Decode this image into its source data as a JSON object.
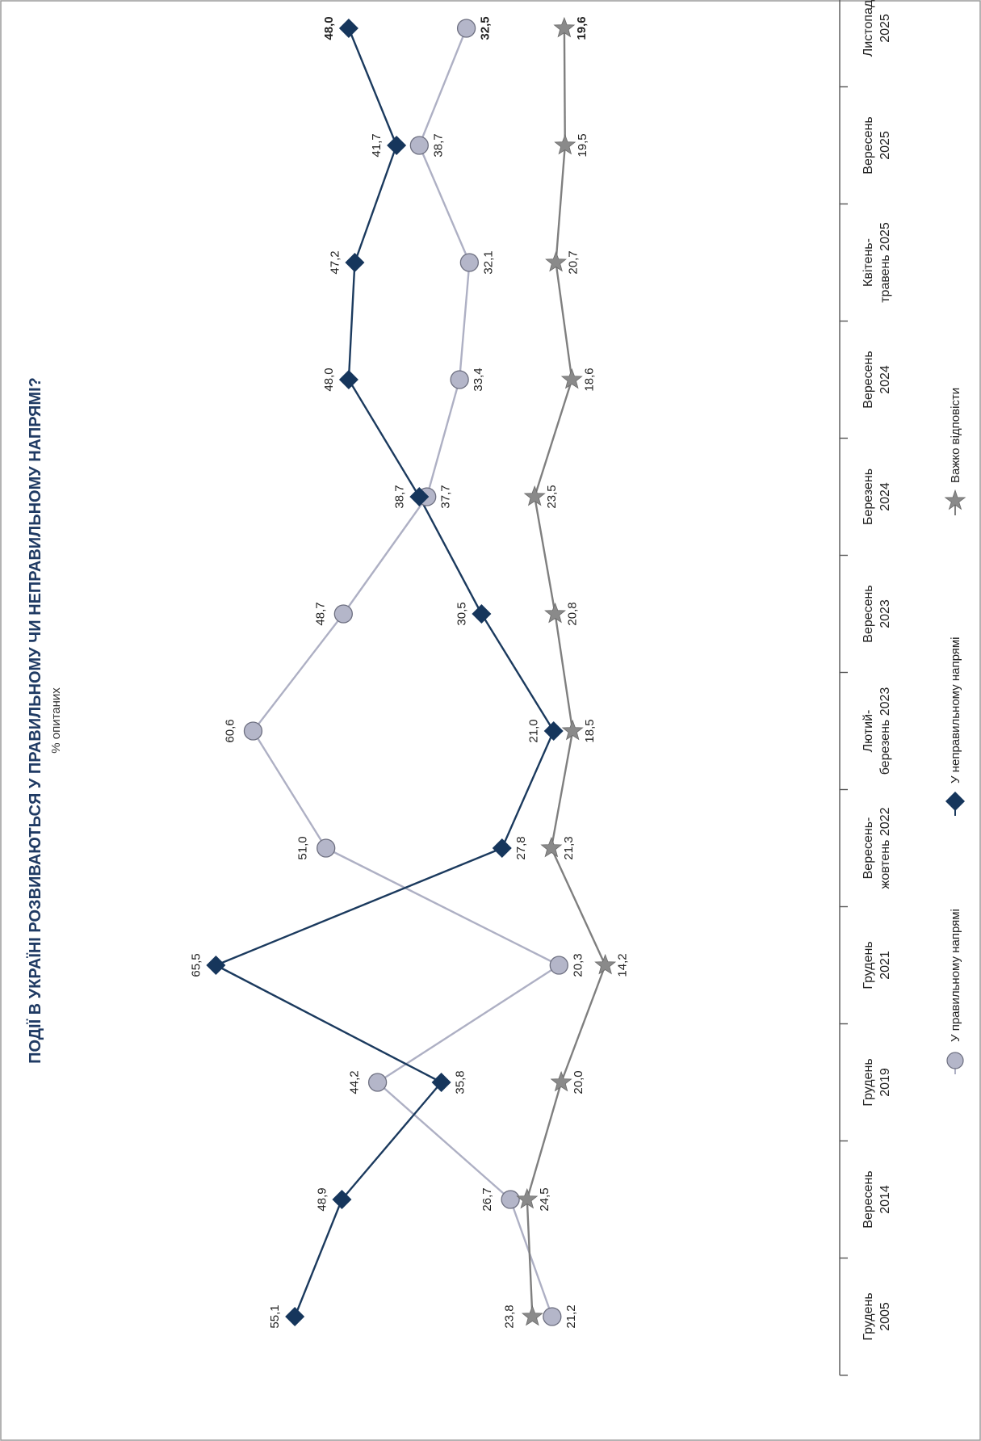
{
  "chart_data": {
    "type": "line",
    "title": "ПОДІЇ В УКРАЇНІ РОЗВИВАЮТЬСЯ У ПРАВИЛЬНОМУ ЧИ НЕПРАВИЛЬНОМУ НАПРЯМІ?",
    "subtitle": "% опитаних",
    "categories": [
      [
        "Грудень",
        "2005"
      ],
      [
        "Вересень",
        "2014"
      ],
      [
        "Грудень",
        "2019"
      ],
      [
        "Грудень",
        "2021"
      ],
      [
        "Вересень-",
        "жовтень 2022"
      ],
      [
        "Лютий-",
        "березень 2023"
      ],
      [
        "Вересень",
        "2023"
      ],
      [
        "Березень",
        "2024"
      ],
      [
        "Вересень",
        "2024"
      ],
      [
        "Квітень-",
        "травень 2025"
      ],
      [
        "Вересень",
        "2025"
      ],
      [
        "Листопад",
        "2025"
      ]
    ],
    "series": [
      {
        "name": "У правильному напрямі",
        "values": [
          21.2,
          26.7,
          44.2,
          20.3,
          51.0,
          60.6,
          48.7,
          37.7,
          33.4,
          32.1,
          38.7,
          32.5
        ],
        "labels": [
          "21,2",
          "26,7",
          "44,2",
          "20,3",
          "51,0",
          "60,6",
          "48,7",
          "37,7",
          "33,4",
          "32,1",
          "38,7",
          "32,5"
        ],
        "marker": "circle",
        "color": "#9a9cae",
        "line_color": "#aeb0c4"
      },
      {
        "name": "У неправильному напрямі",
        "values": [
          55.1,
          48.9,
          35.8,
          65.5,
          27.8,
          21.0,
          30.5,
          38.7,
          48.0,
          47.2,
          41.7,
          48.0
        ],
        "labels": [
          "55,1",
          "48,9",
          "35,8",
          "65,5",
          "27,8",
          "21,0",
          "30,5",
          "38,7",
          "48,0",
          "47,2",
          "41,7",
          "48,0"
        ],
        "marker": "diamond",
        "color": "#16365c",
        "line_color": "#1b3a5e"
      },
      {
        "name": "Важко відповісти",
        "values": [
          23.8,
          24.5,
          20.0,
          14.2,
          21.3,
          18.5,
          20.8,
          23.5,
          18.6,
          20.7,
          19.5,
          19.6
        ],
        "labels": [
          "23,8",
          "24,5",
          "20,0",
          "14,2",
          "21,3",
          "18,5",
          "20,8",
          "23,5",
          "18,6",
          "20,7",
          "19,5",
          "19,6"
        ],
        "marker": "star",
        "color": "#7f7f7f",
        "line_color": "#7f7f7f"
      }
    ],
    "rotation": "chart rotated 90° counter-clockwise (value axis horizontal, categories along the right edge)",
    "legend_position": "bottom (left side of rotated page)",
    "last_point_labels_bold": true,
    "grid": false
  }
}
